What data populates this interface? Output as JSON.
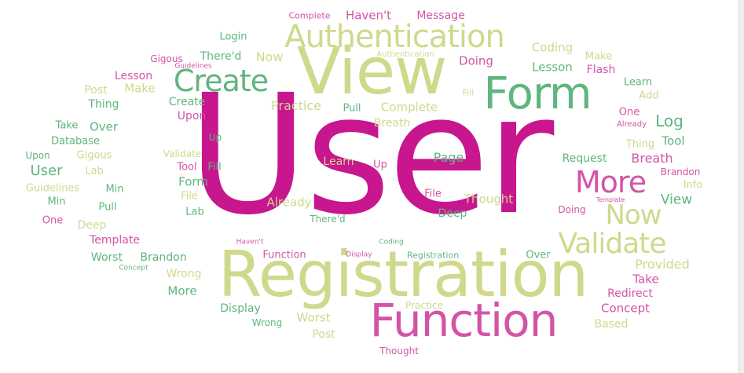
{
  "colors": {
    "magenta": "#c8168f",
    "pink": "#d354a7",
    "olive": "#cfd98c",
    "green": "#5fb57f"
  },
  "words": [
    {
      "text": "User",
      "color": "magenta"
    },
    {
      "text": "Registration",
      "color": "olive"
    },
    {
      "text": "View",
      "color": "olive"
    },
    {
      "text": "Function",
      "color": "pink"
    },
    {
      "text": "Form",
      "color": "green"
    },
    {
      "text": "Authentication",
      "color": "olive"
    },
    {
      "text": "Create",
      "color": "green"
    },
    {
      "text": "More",
      "color": "pink"
    },
    {
      "text": "Validate",
      "color": "olive"
    },
    {
      "text": "Now",
      "color": "olive"
    },
    {
      "text": "Haven't",
      "color": "pink"
    },
    {
      "text": "Message",
      "color": "pink"
    },
    {
      "text": "Complete",
      "color": "pink"
    },
    {
      "text": "Login",
      "color": "green"
    },
    {
      "text": "Coding",
      "color": "olive"
    },
    {
      "text": "Now",
      "color": "olive"
    },
    {
      "text": "Authentication",
      "color": "olive"
    },
    {
      "text": "Make",
      "color": "olive"
    },
    {
      "text": "Gigous",
      "color": "pink"
    },
    {
      "text": "There'd",
      "color": "green"
    },
    {
      "text": "Doing",
      "color": "pink"
    },
    {
      "text": "Lesson",
      "color": "green"
    },
    {
      "text": "Guidelines",
      "color": "pink"
    },
    {
      "text": "Flash",
      "color": "pink"
    },
    {
      "text": "Lesson",
      "color": "pink"
    },
    {
      "text": "Post",
      "color": "olive"
    },
    {
      "text": "Make",
      "color": "olive"
    },
    {
      "text": "Learn",
      "color": "green"
    },
    {
      "text": "Thing",
      "color": "green"
    },
    {
      "text": "Create",
      "color": "green"
    },
    {
      "text": "Practice",
      "color": "olive"
    },
    {
      "text": "Pull",
      "color": "green"
    },
    {
      "text": "Complete",
      "color": "olive"
    },
    {
      "text": "Fill",
      "color": "olive"
    },
    {
      "text": "Add",
      "color": "olive"
    },
    {
      "text": "One",
      "color": "pink"
    },
    {
      "text": "Upon",
      "color": "pink"
    },
    {
      "text": "Log",
      "color": "green"
    },
    {
      "text": "Take",
      "color": "green"
    },
    {
      "text": "Over",
      "color": "green"
    },
    {
      "text": "Breath",
      "color": "olive"
    },
    {
      "text": "Already",
      "color": "pink"
    },
    {
      "text": "Database",
      "color": "green"
    },
    {
      "text": "Up",
      "color": "green"
    },
    {
      "text": "Thing",
      "color": "olive"
    },
    {
      "text": "Tool",
      "color": "green"
    },
    {
      "text": "Upon",
      "color": "green"
    },
    {
      "text": "Gigous",
      "color": "olive"
    },
    {
      "text": "Validate",
      "color": "olive"
    },
    {
      "text": "Page",
      "color": "green"
    },
    {
      "text": "Breath",
      "color": "pink"
    },
    {
      "text": "User",
      "color": "green"
    },
    {
      "text": "Lab",
      "color": "olive"
    },
    {
      "text": "Tool",
      "color": "pink"
    },
    {
      "text": "Fill",
      "color": "green"
    },
    {
      "text": "Learn",
      "color": "olive"
    },
    {
      "text": "Up",
      "color": "pink"
    },
    {
      "text": "Request",
      "color": "green"
    },
    {
      "text": "Brandon",
      "color": "pink"
    },
    {
      "text": "Form",
      "color": "green"
    },
    {
      "text": "Guidelines",
      "color": "olive"
    },
    {
      "text": "Min",
      "color": "green"
    },
    {
      "text": "File",
      "color": "olive"
    },
    {
      "text": "Info",
      "color": "olive"
    },
    {
      "text": "Min",
      "color": "green"
    },
    {
      "text": "Already",
      "color": "olive"
    },
    {
      "text": "File",
      "color": "pink"
    },
    {
      "text": "Thought",
      "color": "olive"
    },
    {
      "text": "View",
      "color": "green"
    },
    {
      "text": "Template",
      "color": "pink"
    },
    {
      "text": "Pull",
      "color": "green"
    },
    {
      "text": "Lab",
      "color": "green"
    },
    {
      "text": "Doing",
      "color": "pink"
    },
    {
      "text": "One",
      "color": "pink"
    },
    {
      "text": "Deep",
      "color": "olive"
    },
    {
      "text": "There'd",
      "color": "green"
    },
    {
      "text": "Deep",
      "color": "green"
    },
    {
      "text": "Template",
      "color": "pink"
    },
    {
      "text": "Haven't",
      "color": "pink"
    },
    {
      "text": "Coding",
      "color": "green"
    },
    {
      "text": "Worst",
      "color": "green"
    },
    {
      "text": "Brandon",
      "color": "green"
    },
    {
      "text": "Function",
      "color": "pink"
    },
    {
      "text": "Display",
      "color": "pink"
    },
    {
      "text": "Registration",
      "color": "green"
    },
    {
      "text": "Over",
      "color": "green"
    },
    {
      "text": "Provided",
      "color": "olive"
    },
    {
      "text": "Concept",
      "color": "green"
    },
    {
      "text": "Wrong",
      "color": "olive"
    },
    {
      "text": "Take",
      "color": "pink"
    },
    {
      "text": "More",
      "color": "green"
    },
    {
      "text": "Redirect",
      "color": "pink"
    },
    {
      "text": "Display",
      "color": "green"
    },
    {
      "text": "Practice",
      "color": "olive"
    },
    {
      "text": "Concept",
      "color": "pink"
    },
    {
      "text": "Worst",
      "color": "olive"
    },
    {
      "text": "Based",
      "color": "olive"
    },
    {
      "text": "Wrong",
      "color": "green"
    },
    {
      "text": "Post",
      "color": "olive"
    },
    {
      "text": "Thought",
      "color": "pink"
    }
  ]
}
